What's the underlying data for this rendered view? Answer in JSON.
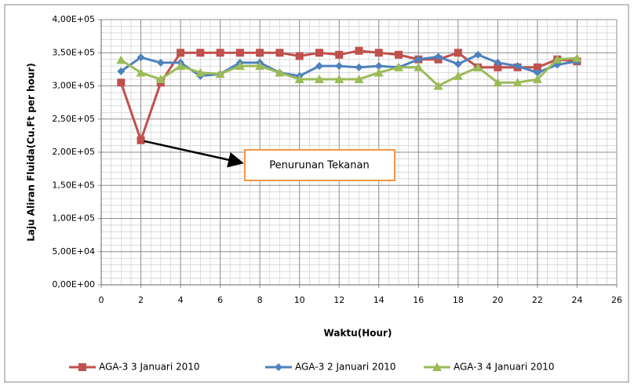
{
  "chart_data": {
    "type": "line",
    "x_label": "Waktu(Hour)",
    "y_label": "Laju Aliran Fluida(Cu.Ft per hour)",
    "annotation": "Penurunan Tekanan",
    "x": [
      1,
      2,
      3,
      4,
      5,
      6,
      7,
      8,
      9,
      10,
      11,
      12,
      13,
      14,
      15,
      16,
      17,
      18,
      19,
      20,
      21,
      22,
      23,
      24
    ],
    "series": [
      {
        "name": "AGA-3 3 Januari 2010",
        "color": "#c0504d",
        "marker": "square",
        "values": [
          305000,
          218000,
          305000,
          350000,
          350000,
          350000,
          350000,
          350000,
          350000,
          345000,
          350000,
          347000,
          353000,
          350000,
          347000,
          340000,
          340000,
          350000,
          328000,
          328000,
          328000,
          328000,
          340000,
          337000
        ]
      },
      {
        "name": "AGA-3 2 Januari 2010",
        "color": "#4f81bd",
        "marker": "diamond",
        "values": [
          322000,
          343000,
          335000,
          335000,
          315000,
          318000,
          335000,
          335000,
          320000,
          315000,
          330000,
          330000,
          328000,
          330000,
          328000,
          340000,
          344000,
          333000,
          347000,
          335000,
          330000,
          320000,
          332000,
          337000
        ]
      },
      {
        "name": "AGA-3 4 Januari 2010",
        "color": "#9bbb59",
        "marker": "triangle",
        "values": [
          339000,
          320000,
          310000,
          330000,
          320000,
          318000,
          330000,
          330000,
          320000,
          310000,
          310000,
          310000,
          310000,
          320000,
          328000,
          328000,
          300000,
          315000,
          328000,
          305000,
          305000,
          310000,
          340000,
          342000
        ]
      }
    ],
    "xlim": [
      0,
      26
    ],
    "xticks": [
      0,
      2,
      4,
      6,
      8,
      10,
      12,
      14,
      16,
      18,
      20,
      22,
      24,
      26
    ],
    "ylim": [
      0,
      400000
    ],
    "yticks": [
      {
        "value": 0,
        "label": "0,00E+00"
      },
      {
        "value": 50000,
        "label": "5,00E+04"
      },
      {
        "value": 100000,
        "label": "1,00E+05"
      },
      {
        "value": 150000,
        "label": "1,50E+05"
      },
      {
        "value": 200000,
        "label": "2,00E+05"
      },
      {
        "value": 250000,
        "label": "2,50E+05"
      },
      {
        "value": 300000,
        "label": "3,00E+05"
      },
      {
        "value": 350000,
        "label": "3,50E+05"
      },
      {
        "value": 400000,
        "label": "4,00E+05"
      }
    ],
    "grid": true,
    "minor_grid": true,
    "legend": "bottom"
  }
}
